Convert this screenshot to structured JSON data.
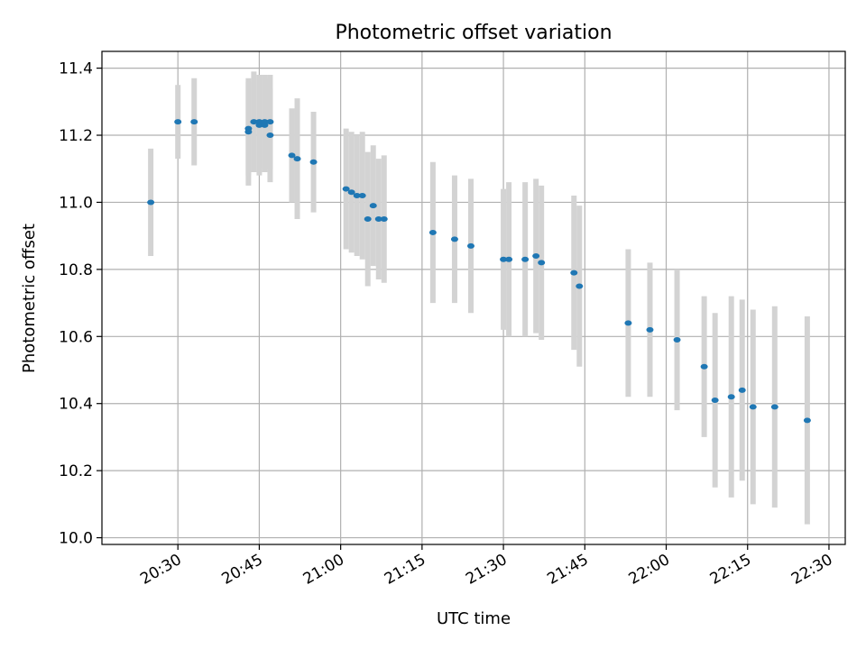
{
  "chart_data": {
    "type": "scatter",
    "title": "Photometric offset variation",
    "xlabel": "UTC time",
    "ylabel": "Photometric offset",
    "xlim": [
      "20:16",
      "22:33"
    ],
    "ylim": [
      9.98,
      11.45
    ],
    "grid": true,
    "x_ticks": [
      "20:30",
      "20:45",
      "21:00",
      "21:15",
      "21:30",
      "21:45",
      "22:00",
      "22:15",
      "22:30"
    ],
    "y_ticks": [
      "10.0",
      "10.2",
      "10.4",
      "10.6",
      "10.8",
      "11.0",
      "11.2",
      "11.4"
    ],
    "colors": {
      "marker": "#1f77b4",
      "errorbar": "#d3d3d3",
      "grid": "#b0b0b0"
    },
    "series": [
      {
        "x": [
          "20:25",
          "20:30",
          "20:33",
          "20:43",
          "20:43",
          "20:44",
          "20:45",
          "20:45",
          "20:46",
          "20:46",
          "20:47",
          "20:47",
          "20:51",
          "20:52",
          "20:55",
          "21:01",
          "21:02",
          "21:03",
          "21:04",
          "21:05",
          "21:06",
          "21:07",
          "21:08",
          "21:17",
          "21:21",
          "21:24",
          "21:30",
          "21:31",
          "21:34",
          "21:36",
          "21:37",
          "21:43",
          "21:44",
          "21:53",
          "21:57",
          "22:02",
          "22:07",
          "22:09",
          "22:12",
          "22:14",
          "22:16",
          "22:20",
          "22:26"
        ],
        "y": [
          11.0,
          11.24,
          11.24,
          11.22,
          11.21,
          11.24,
          11.23,
          11.24,
          11.23,
          11.24,
          11.2,
          11.24,
          11.14,
          11.13,
          11.12,
          11.04,
          11.03,
          11.02,
          11.02,
          10.95,
          10.99,
          10.95,
          10.95,
          10.91,
          10.89,
          10.87,
          10.83,
          10.83,
          10.83,
          10.84,
          10.82,
          10.79,
          10.75,
          10.64,
          10.62,
          10.59,
          10.51,
          10.41,
          10.42,
          10.44,
          10.39,
          10.39,
          10.35
        ],
        "yerr": [
          0.16,
          0.11,
          0.13,
          0.14,
          0.16,
          0.15,
          0.15,
          0.14,
          0.14,
          0.14,
          0.14,
          0.14,
          0.14,
          0.18,
          0.15,
          0.18,
          0.18,
          0.18,
          0.19,
          0.2,
          0.18,
          0.18,
          0.19,
          0.21,
          0.19,
          0.2,
          0.21,
          0.23,
          0.23,
          0.23,
          0.23,
          0.23,
          0.24,
          0.22,
          0.2,
          0.21,
          0.21,
          0.26,
          0.3,
          0.27,
          0.29,
          0.3,
          0.31
        ]
      }
    ]
  }
}
